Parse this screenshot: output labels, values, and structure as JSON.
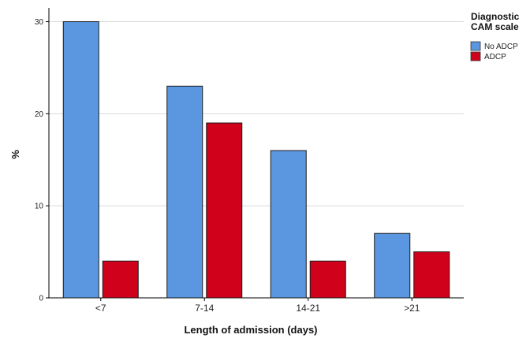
{
  "chart_data": {
    "type": "bar",
    "title": "",
    "xlabel": "Length of admission (days)",
    "ylabel": "%",
    "categories": [
      "<7",
      "7-14",
      "14-21",
      ">21"
    ],
    "yticks": [
      0,
      10,
      20,
      30
    ],
    "ylim": [
      0,
      31.5
    ],
    "grid": true,
    "legend_title": [
      "Diagnostic",
      "CAM scale"
    ],
    "legend_position": "top-right",
    "series": [
      {
        "name": "No ADCP",
        "color": "#5b97e0",
        "values": [
          30,
          23,
          16,
          7
        ]
      },
      {
        "name": "ADCP",
        "color": "#d0021b",
        "values": [
          4,
          19,
          4,
          5
        ]
      }
    ]
  }
}
